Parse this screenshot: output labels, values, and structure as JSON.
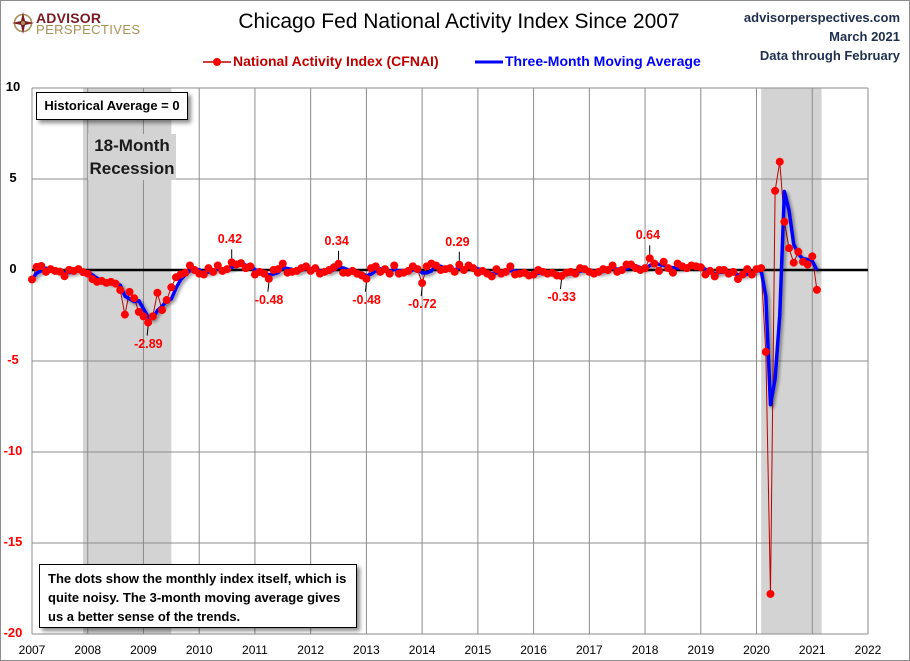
{
  "header": {
    "title": "Chicago Fed National Activity Index Since 2007",
    "logo_line1": "ADVISOR",
    "logo_line2": "PERSPECTIVES",
    "source_site": "advisorperspectives.com",
    "source_date": "March 2021",
    "source_note": "Data through February"
  },
  "annotations": {
    "historical_average": "Historical Average = 0",
    "recession_line1": "18-Month",
    "recession_line2": "Recession",
    "note": "The dots show the monthly  index itself, which is quite noisy. The 3-month moving average gives us a better sense of the trends."
  },
  "colors": {
    "cfnai": "#ff0000",
    "cfnai_line": "#c00000",
    "moving_average": "#0000ff",
    "recession_shade": "#d3d3d3",
    "grid": "#8c8c8c",
    "zero_line": "#000000",
    "negative_tick": "#ff0000"
  },
  "chart_data": {
    "type": "line",
    "title": "Chicago Fed National Activity Index Since 2007",
    "xlabel": "",
    "ylabel": "",
    "ylim": [
      -20,
      10
    ],
    "xlim": [
      2007,
      2022
    ],
    "grid": true,
    "legend_position": "top-center",
    "y_ticks": [
      10,
      5,
      0,
      -5,
      -10,
      -15,
      -20
    ],
    "x_ticks": [
      "2007",
      "2008",
      "2009",
      "2010",
      "2011",
      "2012",
      "2013",
      "2014",
      "2015",
      "2016",
      "2017",
      "2018",
      "2019",
      "2020",
      "2021",
      "2022"
    ],
    "start": "2007-01",
    "frequency": "monthly",
    "recessions": [
      {
        "label": "18-Month Recession",
        "start": "2007-12",
        "end": "2009-06"
      },
      {
        "label": "",
        "start": "2020-02",
        "end": "2021-02"
      }
    ],
    "series": [
      {
        "name": "National Activity Index (CFNAI)",
        "style": "line-with-markers",
        "values": [
          -0.52,
          0.17,
          0.22,
          -0.1,
          0.05,
          -0.05,
          -0.09,
          -0.34,
          0.01,
          -0.05,
          0.05,
          -0.12,
          -0.2,
          -0.5,
          -0.65,
          -0.6,
          -0.7,
          -0.65,
          -0.75,
          -1.1,
          -2.45,
          -1.2,
          -1.55,
          -2.3,
          -2.55,
          -2.89,
          -2.55,
          -1.25,
          -2.2,
          -1.65,
          -0.95,
          -0.4,
          -0.25,
          -0.15,
          0.25,
          0.0,
          -0.2,
          -0.25,
          0.1,
          -0.1,
          0.25,
          -0.05,
          0.05,
          0.42,
          0.3,
          0.38,
          0.1,
          0.2,
          -0.25,
          -0.1,
          -0.2,
          -0.48,
          0.0,
          0.05,
          0.35,
          -0.15,
          -0.1,
          -0.05,
          0.1,
          0.2,
          -0.05,
          0.1,
          -0.2,
          -0.1,
          0.0,
          0.15,
          0.34,
          -0.15,
          -0.15,
          -0.05,
          -0.2,
          -0.3,
          -0.48,
          0.1,
          0.2,
          -0.1,
          0.05,
          -0.2,
          0.25,
          -0.2,
          -0.15,
          -0.05,
          0.2,
          0.05,
          -0.72,
          0.2,
          0.35,
          0.25,
          0.0,
          0.05,
          0.1,
          -0.1,
          0.29,
          0.0,
          0.25,
          0.1,
          -0.15,
          -0.05,
          -0.2,
          -0.35,
          0.05,
          -0.2,
          -0.1,
          0.2,
          -0.25,
          -0.2,
          -0.15,
          -0.3,
          -0.25,
          0.0,
          -0.1,
          -0.2,
          -0.15,
          -0.3,
          -0.33,
          -0.15,
          -0.1,
          -0.2,
          0.1,
          0.05,
          -0.1,
          -0.2,
          -0.1,
          0.05,
          0.0,
          0.25,
          -0.1,
          0.0,
          0.3,
          0.3,
          0.1,
          0.0,
          0.1,
          0.64,
          0.35,
          -0.05,
          0.45,
          0.1,
          -0.15,
          0.35,
          0.2,
          0.1,
          0.25,
          0.2,
          0.15,
          -0.25,
          -0.05,
          -0.35,
          0.0,
          0.0,
          -0.2,
          -0.1,
          -0.5,
          -0.25,
          0.05,
          -0.25,
          0.05,
          0.1,
          -4.5,
          -17.8,
          4.35,
          5.95,
          2.65,
          1.2,
          0.4,
          1.0,
          0.45,
          0.3,
          0.75,
          -1.09
        ]
      },
      {
        "name": "Three-Month Moving Average",
        "style": "line",
        "derived_from": "National Activity Index (CFNAI)",
        "window": 3
      }
    ],
    "data_labels": [
      {
        "date": "2009-02",
        "text": "-2.89",
        "value": -2.89,
        "position": "below"
      },
      {
        "date": "2010-08",
        "text": "0.42",
        "value": 0.42,
        "position": "above"
      },
      {
        "date": "2011-04",
        "text": "-0.48",
        "value": -0.48,
        "position": "below"
      },
      {
        "date": "2012-07",
        "text": "0.34",
        "value": 0.34,
        "position": "above"
      },
      {
        "date": "2013-01",
        "text": "-0.48",
        "value": -0.48,
        "position": "below"
      },
      {
        "date": "2014-01",
        "text": "-0.72",
        "value": -0.72,
        "position": "below"
      },
      {
        "date": "2014-09",
        "text": "0.29",
        "value": 0.29,
        "position": "above"
      },
      {
        "date": "2016-07",
        "text": "-0.33",
        "value": -0.33,
        "position": "below"
      },
      {
        "date": "2018-02",
        "text": "0.64",
        "value": 0.64,
        "position": "above"
      }
    ]
  }
}
